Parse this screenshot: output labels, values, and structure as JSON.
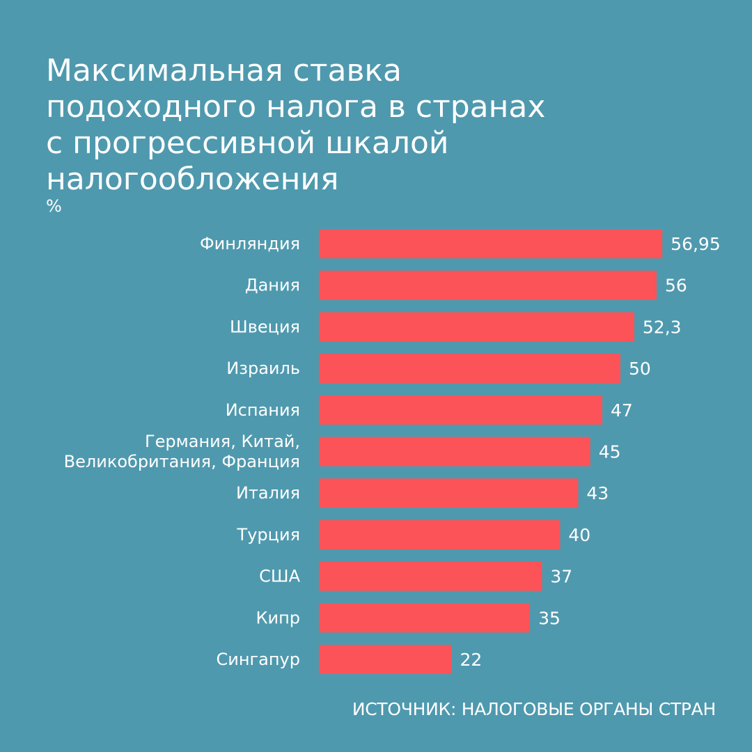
{
  "chart_data": {
    "type": "bar",
    "orientation": "horizontal",
    "title_lines": [
      "Максимальная ставка",
      "подоходного налога в странах",
      "с прогрессивной шкалой",
      "налогообложения"
    ],
    "unit": "%",
    "categories": [
      [
        "Финляндия"
      ],
      [
        "Дания"
      ],
      [
        "Швеция"
      ],
      [
        "Израиль"
      ],
      [
        "Испания"
      ],
      [
        "Германия, Китай,",
        "Великобритания, Франция"
      ],
      [
        "Италия"
      ],
      [
        "Турция"
      ],
      [
        "США"
      ],
      [
        "Кипр"
      ],
      [
        "Сингапур"
      ]
    ],
    "values": [
      56.95,
      56,
      52.3,
      50,
      47,
      45,
      43,
      40,
      37,
      35,
      22
    ],
    "value_labels": [
      "56,95",
      "56",
      "52,3",
      "50",
      "47",
      "45",
      "43",
      "40",
      "37",
      "35",
      "22"
    ],
    "xlim": [
      0,
      60
    ],
    "grid": false,
    "legend": "none",
    "bar_color": "#fc5358",
    "background_color": "#4f99ae",
    "source": "ИСТОЧНИК: НАЛОГОВЫЕ ОРГАНЫ СТРАН"
  }
}
